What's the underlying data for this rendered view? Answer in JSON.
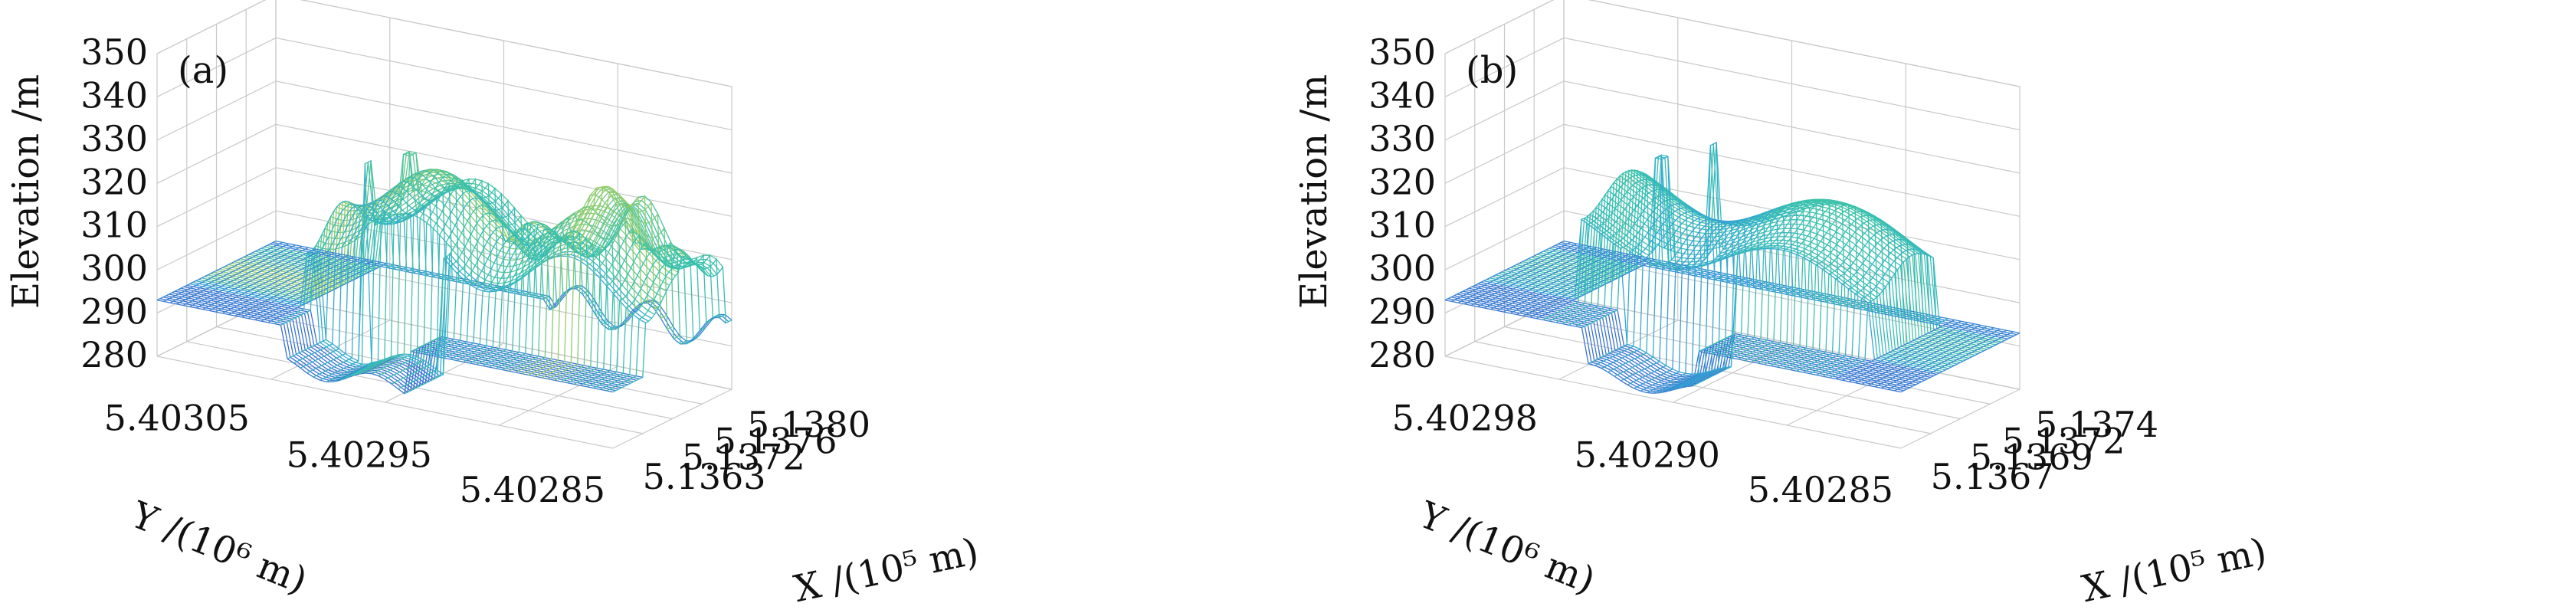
{
  "chart_data": [
    {
      "type": "surface",
      "panel_label": "(a)",
      "zlabel": "Elevation /m",
      "xlabel": "X /(10⁵ m)",
      "ylabel": "Y /(10⁶ m)",
      "z_ticks": [
        "350",
        "340",
        "330",
        "320",
        "310",
        "300",
        "290",
        "280"
      ],
      "x_ticks": [
        "5.1363",
        "5.1372",
        "5.1376",
        "5.1380"
      ],
      "y_ticks": [
        "5.40305",
        "5.40295",
        "5.40285"
      ],
      "zlim": [
        280,
        350
      ],
      "grid": true,
      "colormap": [
        "#2c2a8c",
        "#3a6fd0",
        "#35a6d8",
        "#37c1b0",
        "#a6d05a",
        "#d9d24a"
      ]
    },
    {
      "type": "surface",
      "panel_label": "(b)",
      "zlabel": "Elevation /m",
      "xlabel": "X /(10⁵ m)",
      "ylabel": "Y /(10⁶ m)",
      "z_ticks": [
        "350",
        "340",
        "330",
        "320",
        "310",
        "300",
        "290",
        "280"
      ],
      "x_ticks": [
        "5.1367",
        "5.1369",
        "5.1372",
        "5.1374"
      ],
      "y_ticks": [
        "5.40298",
        "5.40290",
        "5.40285"
      ],
      "zlim": [
        280,
        350
      ],
      "grid": true,
      "colormap": [
        "#2c2a8c",
        "#3a6fd0",
        "#35a6d8",
        "#37c1b0",
        "#a6d05a",
        "#d9d24a"
      ]
    }
  ]
}
